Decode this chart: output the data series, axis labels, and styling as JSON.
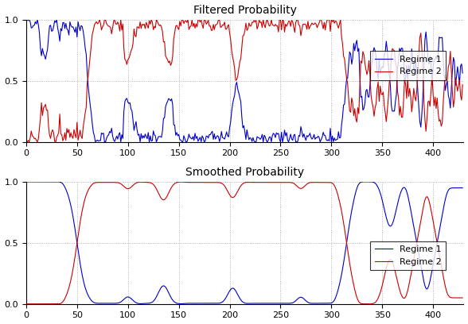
{
  "title_filtered": "Filtered Probability",
  "title_smoothed": "Smoothed Probability",
  "xlim": [
    0,
    430
  ],
  "ylim": [
    0,
    1
  ],
  "yticks": [
    0,
    0.5,
    1
  ],
  "xticks": [
    0,
    50,
    100,
    150,
    200,
    250,
    300,
    350,
    400
  ],
  "legend_labels": [
    "Regime 1",
    "Regime 2"
  ],
  "colors": [
    "#0000cc",
    "#cc0000"
  ],
  "linewidth": 0.8,
  "background": "#ffffff",
  "title_fontsize": 10,
  "tick_fontsize": 8,
  "legend_fontsize": 8
}
